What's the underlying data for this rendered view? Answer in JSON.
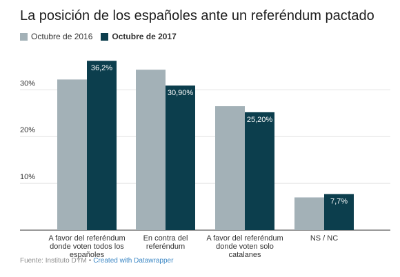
{
  "title": "La posición de los españoles ante un referéndum pactado",
  "footer": {
    "source": "Fuente: Instituto DYM",
    "separator": "•",
    "credit": "Created with Datawrapper"
  },
  "colors": {
    "series_2016": "#a3b1b7",
    "series_2017": "#0c3e4d",
    "grid": "#e2e2e2",
    "axis": "#333333",
    "text": "#333333"
  },
  "chart_data": {
    "type": "bar",
    "title": "La posición de los españoles ante un referéndum pactado",
    "categories": [
      [
        "A favor del referéndum",
        "donde voten todos los",
        "españoles"
      ],
      [
        "En contra del",
        "referéndum"
      ],
      [
        "A favor del referéndum",
        "donde voten solo",
        "catalanes"
      ],
      [
        "NS / NC"
      ]
    ],
    "series": [
      {
        "name": "Octubre de 2016",
        "values": [
          32.2,
          34.3,
          26.5,
          7.0
        ],
        "labels": [
          "",
          "",
          "",
          ""
        ]
      },
      {
        "name": "Octubre de 2017",
        "values": [
          36.2,
          30.9,
          25.2,
          7.7
        ],
        "labels": [
          "36,2%",
          "30,90%",
          "25,20%",
          "7,7%"
        ]
      }
    ],
    "ylim": [
      0,
      38
    ],
    "yticks": [
      {
        "value": 10,
        "label": "10%"
      },
      {
        "value": 20,
        "label": "20%"
      },
      {
        "value": 30,
        "label": "30%"
      }
    ],
    "grid": true,
    "legend": "top-left"
  }
}
